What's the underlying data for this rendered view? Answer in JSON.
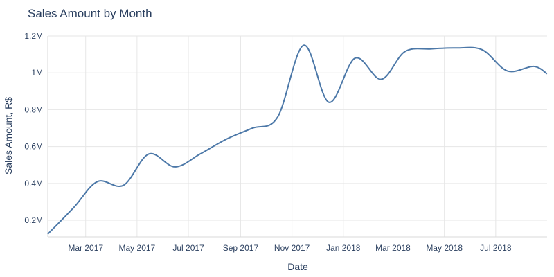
{
  "chart_data": {
    "type": "line",
    "title": "Sales Amount by Month",
    "xlabel": "Date",
    "ylabel": "Sales Amount, R$",
    "x_ticks": [
      "Mar 2017",
      "May 2017",
      "Jul 2017",
      "Sep 2017",
      "Nov 2017",
      "Jan 2018",
      "Mar 2018",
      "May 2018",
      "Jul 2018"
    ],
    "y_ticks": [
      "0.2M",
      "0.4M",
      "0.6M",
      "0.8M",
      "1M",
      "1.2M"
    ],
    "y_tick_values": [
      200000,
      400000,
      600000,
      800000,
      1000000,
      1200000
    ],
    "xlim": [
      "2017-01-15",
      "2018-08-31"
    ],
    "ylim": [
      110000,
      1200000
    ],
    "grid": true,
    "color": "#4c78a8",
    "x": [
      "2017-01-15",
      "2017-02-15",
      "2017-03-15",
      "2017-04-15",
      "2017-05-15",
      "2017-06-15",
      "2017-07-15",
      "2017-08-15",
      "2017-09-15",
      "2017-10-15",
      "2017-11-15",
      "2017-12-15",
      "2018-01-15",
      "2018-02-15",
      "2018-03-15",
      "2018-04-15",
      "2018-05-15",
      "2018-06-15",
      "2018-07-15",
      "2018-08-15",
      "2018-08-31"
    ],
    "values": [
      125000,
      270000,
      410000,
      390000,
      560000,
      490000,
      560000,
      640000,
      700000,
      760000,
      1150000,
      840000,
      1080000,
      965000,
      1115000,
      1130000,
      1135000,
      1125000,
      1010000,
      1035000,
      995000
    ]
  }
}
